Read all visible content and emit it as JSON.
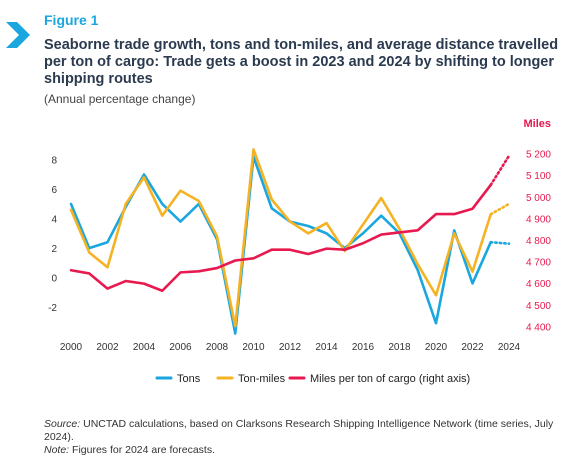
{
  "figure_label": "Figure 1",
  "title": "Seaborne trade growth, tons and ton-miles, and average distance travelled per ton of cargo: Trade gets a boost in 2023 and 2024 by shifting to longer shipping routes",
  "subtitle": "(Annual percentage change)",
  "source_label": "Source:",
  "source_text": " UNCTAD calculations, based on Clarksons Research Shipping Intelligence Network (time series, July 2024).",
  "note_label": "Note:",
  "note_text": " Figures for 2024 are forecasts.",
  "chart_data": {
    "type": "line",
    "x": [
      2000,
      2001,
      2002,
      2003,
      2004,
      2005,
      2006,
      2007,
      2008,
      2009,
      2010,
      2011,
      2012,
      2013,
      2014,
      2015,
      2016,
      2017,
      2018,
      2019,
      2020,
      2021,
      2022,
      2023,
      2024
    ],
    "forecast_from": 2023,
    "x_ticks": [
      "2000",
      "2002",
      "2004",
      "2006",
      "2008",
      "2010",
      "2012",
      "2014",
      "2016",
      "2018",
      "2020",
      "2022",
      "2024"
    ],
    "y_left": {
      "ylim": [
        -3.9,
        9.0
      ],
      "ticks": [
        "8",
        "6",
        "4",
        "2",
        "0",
        "-2"
      ]
    },
    "y_right": {
      "title": "Miles",
      "ylim": [
        4360,
        5240
      ],
      "ticks": [
        "5 200",
        "5 100",
        "5 000",
        "4 900",
        "4 800",
        "4 700",
        "4 600",
        "4 500",
        "4 400"
      ]
    },
    "series": [
      {
        "name": "Tons",
        "axis": "left",
        "color": "#1aa6df",
        "values": [
          5.0,
          2.0,
          2.4,
          4.8,
          7.0,
          5.0,
          3.8,
          5.0,
          2.6,
          -3.8,
          8.2,
          4.7,
          3.8,
          3.5,
          3.0,
          2.0,
          3.0,
          4.2,
          3.0,
          0.5,
          -3.1,
          3.2,
          -0.4,
          2.4,
          2.3
        ]
      },
      {
        "name": "Ton-miles",
        "axis": "left",
        "color": "#f5b324",
        "values": [
          4.6,
          1.7,
          0.7,
          5.0,
          6.8,
          4.2,
          5.9,
          5.2,
          2.8,
          -3.3,
          8.7,
          5.3,
          3.8,
          3.0,
          3.7,
          1.8,
          3.6,
          5.4,
          3.3,
          0.9,
          -1.2,
          3.0,
          0.4,
          4.3,
          5.0
        ]
      },
      {
        "name": "Miles per ton of cargo (right axis)",
        "axis": "right",
        "color": "#e8194e",
        "values": [
          4660,
          4645,
          4575,
          4610,
          4598,
          4565,
          4650,
          4655,
          4670,
          4705,
          4715,
          4755,
          4755,
          4735,
          4760,
          4755,
          4785,
          4825,
          4835,
          4845,
          4920,
          4920,
          4945,
          5055,
          5190
        ]
      }
    ],
    "legend_position": "bottom",
    "grid": false
  }
}
